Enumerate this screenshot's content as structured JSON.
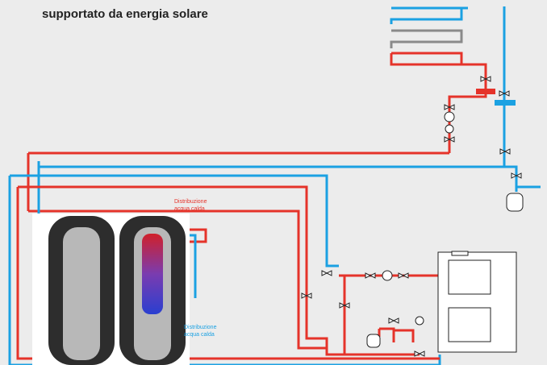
{
  "header": {
    "title": "supportato da energia solare"
  },
  "labels": [
    {
      "lines": [
        "Distribuzione",
        "acqua calda"
      ]
    },
    {
      "lines": [
        "Distribuzione",
        "acqua calda"
      ]
    }
  ]
}
